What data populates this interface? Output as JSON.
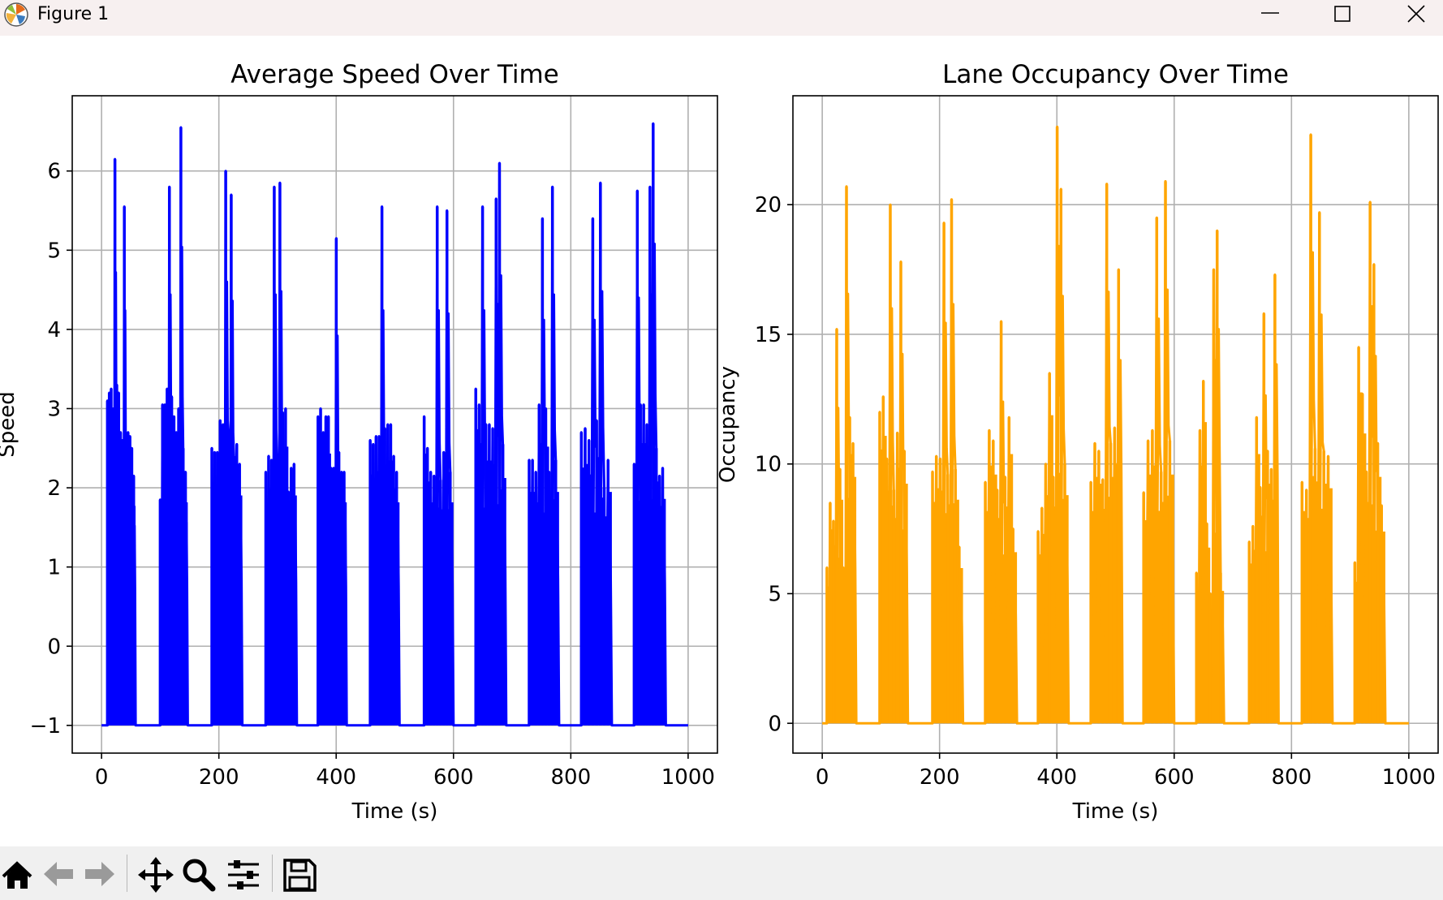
{
  "window": {
    "title": "Figure 1",
    "controls": [
      "minimize",
      "maximize",
      "close"
    ]
  },
  "toolbar": {
    "tools": [
      {
        "name": "home-icon",
        "action": "Home"
      },
      {
        "name": "back-arrow-icon",
        "action": "Back"
      },
      {
        "name": "forward-arrow-icon",
        "action": "Forward"
      },
      {
        "name": "pan-icon",
        "action": "Pan"
      },
      {
        "name": "zoom-icon",
        "action": "Zoom"
      },
      {
        "name": "configure-subplots-icon",
        "action": "Configure subplots"
      },
      {
        "name": "save-icon",
        "action": "Save"
      }
    ]
  },
  "chart_data": [
    {
      "type": "line",
      "title": "Average Speed Over Time",
      "xlabel": "Time (s)",
      "ylabel": "Speed",
      "xlim": [
        -50,
        1050
      ],
      "ylim": [
        -1.35,
        6.95
      ],
      "xticks": [
        0,
        200,
        400,
        600,
        800,
        1000
      ],
      "xtick_labels": [
        "0",
        "200",
        "400",
        "600",
        "800",
        "1000"
      ],
      "yticks": [
        -1,
        0,
        1,
        2,
        3,
        4,
        5,
        6
      ],
      "ytick_labels": [
        "−1",
        "0",
        "1",
        "2",
        "3",
        "4",
        "5",
        "6"
      ],
      "grid": true,
      "color": "#0000ff",
      "baseline": -1,
      "x": [
        0,
        1000
      ],
      "bursts": [
        {
          "start": 10,
          "end": 58,
          "values": [
            3.1,
            3.2,
            3.25,
            3.0,
            6.15,
            3.3,
            3.2,
            2.7,
            2.6,
            5.55,
            2.65,
            2.7,
            2.65,
            2.5,
            2.15
          ]
        },
        {
          "start": 100,
          "end": 147,
          "values": [
            1.85,
            3.05,
            3.05,
            3.25,
            5.8,
            3.15,
            2.9,
            2.7,
            3.0,
            6.55,
            2.5,
            2.2
          ]
        },
        {
          "start": 188,
          "end": 240,
          "values": [
            2.5,
            2.45,
            2.45,
            2.85,
            2.8,
            6.0,
            2.7,
            5.7,
            2.4,
            2.55,
            2.3
          ]
        },
        {
          "start": 280,
          "end": 333,
          "values": [
            2.2,
            2.4,
            2.35,
            5.8,
            2.35,
            5.85,
            2.95,
            3.0,
            1.95,
            2.25,
            2.3
          ]
        },
        {
          "start": 369,
          "end": 418,
          "values": [
            2.9,
            3.0,
            2.7,
            2.9,
            2.9,
            2.25,
            2.25,
            5.15,
            2.45,
            2.2,
            2.2
          ]
        },
        {
          "start": 458,
          "end": 508,
          "values": [
            2.6,
            2.55,
            2.65,
            2.65,
            5.55,
            2.75,
            2.8,
            2.8,
            2.4,
            2.2
          ]
        },
        {
          "start": 550,
          "end": 600,
          "values": [
            2.9,
            2.5,
            2.2,
            2.15,
            5.55,
            2.1,
            2.45,
            5.5,
            2.2
          ]
        },
        {
          "start": 638,
          "end": 690,
          "values": [
            3.25,
            3.05,
            5.55,
            2.8,
            2.8,
            2.75,
            5.65,
            6.1,
            2.55
          ]
        },
        {
          "start": 729,
          "end": 780,
          "values": [
            2.35,
            2.35,
            2.2,
            3.05,
            5.4,
            3.0,
            2.2,
            5.8,
            2.35
          ]
        },
        {
          "start": 818,
          "end": 870,
          "values": [
            2.7,
            2.75,
            2.6,
            5.4,
            2.85,
            5.85,
            2.0,
            2.35
          ]
        },
        {
          "start": 908,
          "end": 962,
          "values": [
            2.3,
            5.75,
            3.05,
            3.05,
            2.8,
            5.8,
            6.6,
            2.5,
            2.15,
            2.25
          ]
        }
      ]
    },
    {
      "type": "line",
      "title": "Lane Occupancy Over Time",
      "xlabel": "Time (s)",
      "ylabel": "Occupancy",
      "xlim": [
        -50,
        1050
      ],
      "ylim": [
        -1.15,
        24.2
      ],
      "xticks": [
        0,
        200,
        400,
        600,
        800,
        1000
      ],
      "xtick_labels": [
        "0",
        "200",
        "400",
        "600",
        "800",
        "1000"
      ],
      "yticks": [
        0,
        5,
        10,
        15,
        20
      ],
      "ytick_labels": [
        "0",
        "5",
        "10",
        "15",
        "20"
      ],
      "grid": true,
      "color": "#ffa500",
      "baseline": 0,
      "x": [
        0,
        1000
      ],
      "bursts": [
        {
          "start": 8,
          "end": 58,
          "values": [
            6.0,
            8.5,
            7.8,
            15.2,
            9.8,
            6.0,
            20.7,
            11.8,
            10.8
          ]
        },
        {
          "start": 98,
          "end": 146,
          "values": [
            12.0,
            12.6,
            10.2,
            20.0,
            9.0,
            11.2,
            17.8,
            10.5
          ]
        },
        {
          "start": 188,
          "end": 240,
          "values": [
            9.7,
            10.3,
            10.2,
            19.3,
            9.6,
            20.2,
            9.8,
            6.8
          ]
        },
        {
          "start": 278,
          "end": 332,
          "values": [
            9.3,
            11.3,
            10.9,
            9.0,
            15.5,
            9.5,
            11.8,
            7.5
          ]
        },
        {
          "start": 368,
          "end": 420,
          "values": [
            7.4,
            8.3,
            10.0,
            13.5,
            9.5,
            23.0,
            20.6,
            10.0
          ]
        },
        {
          "start": 458,
          "end": 512,
          "values": [
            9.3,
            10.8,
            10.5,
            9.4,
            20.8,
            10.8,
            11.4,
            17.5
          ]
        },
        {
          "start": 548,
          "end": 600,
          "values": [
            8.9,
            10.9,
            11.3,
            19.5,
            9.7,
            20.9,
            10.9
          ]
        },
        {
          "start": 638,
          "end": 685,
          "values": [
            5.8,
            11.3,
            13.2,
            7.7,
            5.0,
            17.5,
            19.0,
            5.8
          ]
        },
        {
          "start": 728,
          "end": 778,
          "values": [
            7.0,
            7.6,
            11.8,
            9.1,
            15.8,
            10.5,
            9.8,
            17.3
          ]
        },
        {
          "start": 818,
          "end": 870,
          "values": [
            9.3,
            9.0,
            22.7,
            10.6,
            19.7,
            10.5,
            10.3
          ]
        },
        {
          "start": 908,
          "end": 960,
          "values": [
            6.2,
            14.5,
            12.7,
            9.7,
            20.1,
            17.7,
            10.8,
            8.4
          ]
        }
      ]
    }
  ]
}
